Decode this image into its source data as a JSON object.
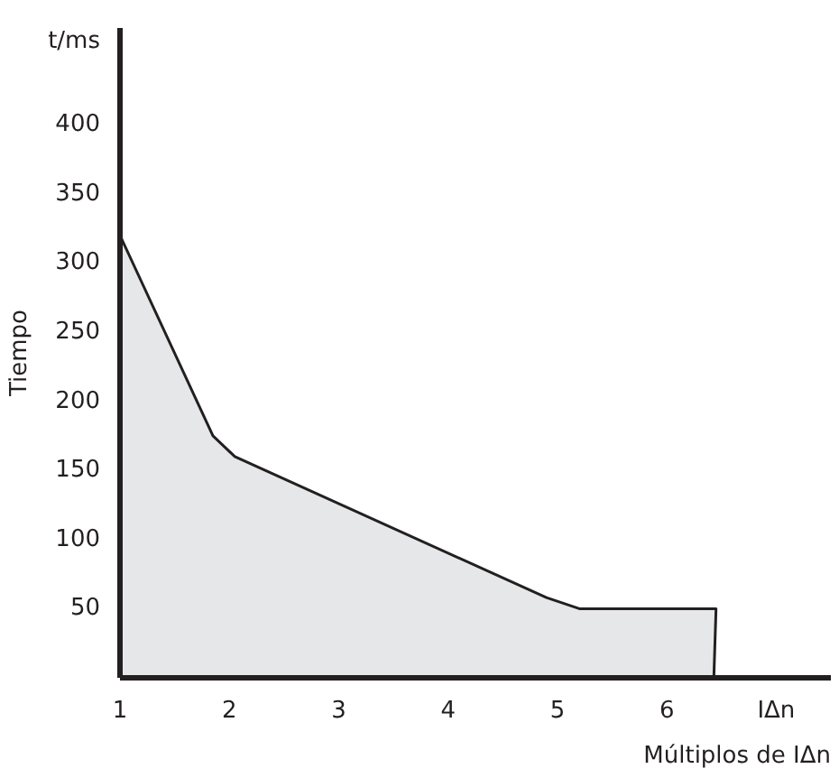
{
  "chart_data": {
    "type": "area",
    "xlabel": "Múltiplos de IΔn",
    "ylabel": "Tiempo",
    "x": [
      1,
      1.85,
      2.05,
      4.9,
      5.2,
      6.45,
      6.43
    ],
    "series": [
      {
        "color": "#e6e7e8",
        "values": [
          320,
          175,
          160,
          58,
          50,
          50,
          0
        ]
      }
    ],
    "xlim": [
      1,
      7.5
    ],
    "xticks": [
      1,
      2,
      3,
      4,
      5,
      6,
      {
        "value": 7,
        "label": "IΔn"
      }
    ],
    "ylim": [
      0,
      470
    ],
    "yticks": [
      50,
      100,
      150,
      200,
      250,
      300,
      350,
      400,
      {
        "value": 460,
        "label": "t/ms"
      }
    ],
    "grid": false
  }
}
